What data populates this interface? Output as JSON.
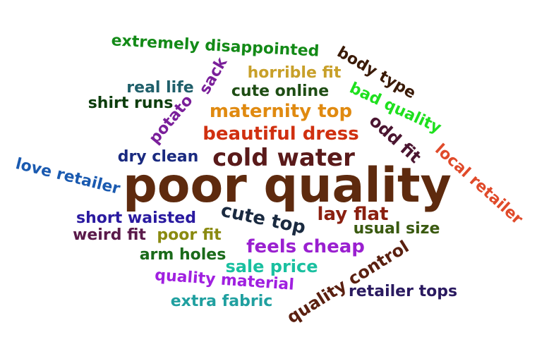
{
  "words": [
    {
      "text": "poor quality",
      "color": "#5e2a0e"
    },
    {
      "text": "extremely disappointed",
      "color": "#138a17"
    },
    {
      "text": "body type",
      "color": "#3a1a06"
    },
    {
      "text": "horrible fit",
      "color": "#c8a02a"
    },
    {
      "text": "real life",
      "color": "#1f5f6a"
    },
    {
      "text": "sack",
      "color": "#7a1f9a"
    },
    {
      "text": "cute online",
      "color": "#1e4d14"
    },
    {
      "text": "bad quality",
      "color": "#1ee01e"
    },
    {
      "text": "shirt runs",
      "color": "#0c3d0c"
    },
    {
      "text": "potato",
      "color": "#7a1f9a"
    },
    {
      "text": "maternity top",
      "color": "#e08a10"
    },
    {
      "text": "odd fit",
      "color": "#4a1530"
    },
    {
      "text": "beautiful dress",
      "color": "#d03010"
    },
    {
      "text": "local retailer",
      "color": "#e04a2a"
    },
    {
      "text": "dry clean",
      "color": "#1a2a80"
    },
    {
      "text": "cold water",
      "color": "#5a1a1a"
    },
    {
      "text": "love retailer",
      "color": "#1a5ab0"
    },
    {
      "text": "short waisted",
      "color": "#2a1aa0"
    },
    {
      "text": "cute top",
      "color": "#1a2a40"
    },
    {
      "text": "lay flat",
      "color": "#8a2010"
    },
    {
      "text": "weird fit",
      "color": "#5a1a4a"
    },
    {
      "text": "poor fit",
      "color": "#8a8a10"
    },
    {
      "text": "usual size",
      "color": "#3a5a10"
    },
    {
      "text": "feels cheap",
      "color": "#9a20d0"
    },
    {
      "text": "arm holes",
      "color": "#1a6a1a"
    },
    {
      "text": "sale price",
      "color": "#1ac0a0"
    },
    {
      "text": "quality control",
      "color": "#5a2010"
    },
    {
      "text": "quality material",
      "color": "#a020e0"
    },
    {
      "text": "retailer tops",
      "color": "#2a1a60"
    },
    {
      "text": "extra fabric",
      "color": "#20a0a0"
    }
  ]
}
